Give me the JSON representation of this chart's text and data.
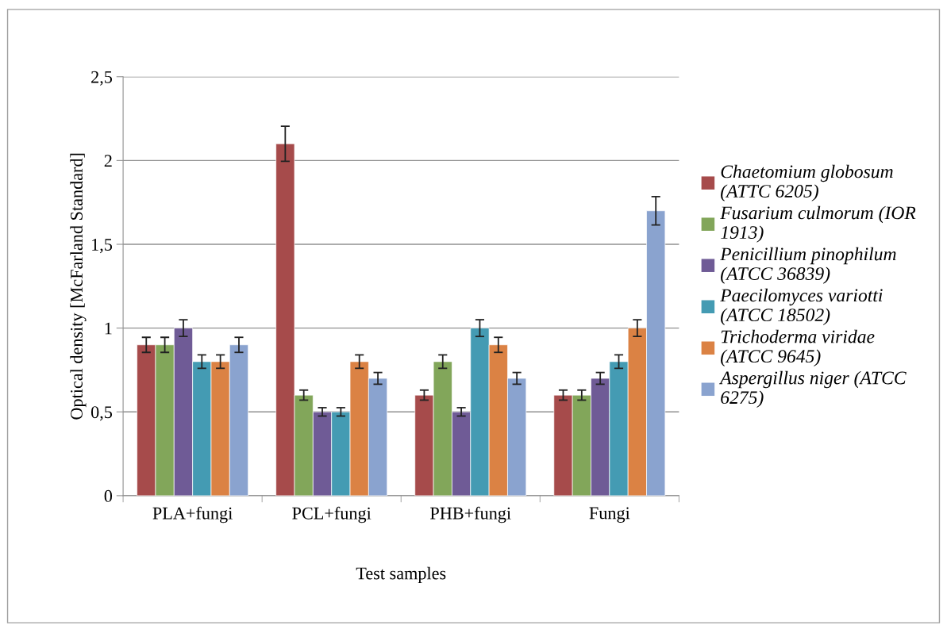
{
  "chart_data": {
    "type": "bar",
    "xlabel": "Test samples",
    "ylabel": "Optical density [McFarland Standard]",
    "categories": [
      "PLA+fungi",
      "PCL+fungi",
      "PHB+fungi",
      "Fungi"
    ],
    "series": [
      {
        "name": "Chaetomium globosum (ATTC 6205)",
        "color": "#a64b4b",
        "values": [
          0.9,
          2.1,
          0.6,
          0.6
        ],
        "errors": [
          0.045,
          0.105,
          0.03,
          0.03
        ]
      },
      {
        "name": "Fusarium culmorum (IOR 1913)",
        "color": "#82a65a",
        "values": [
          0.9,
          0.6,
          0.8,
          0.6
        ],
        "errors": [
          0.045,
          0.03,
          0.04,
          0.03
        ]
      },
      {
        "name": "Penicillium pinophilum (ATCC 36839)",
        "color": "#6f5b96",
        "values": [
          1.0,
          0.5,
          0.5,
          0.7
        ],
        "errors": [
          0.05,
          0.025,
          0.025,
          0.035
        ]
      },
      {
        "name": "Paecilomyces variotti (ATCC 18502)",
        "color": "#449bb3",
        "values": [
          0.8,
          0.5,
          1.0,
          0.8
        ],
        "errors": [
          0.04,
          0.025,
          0.05,
          0.04
        ]
      },
      {
        "name": "Trichoderma viridae (ATCC 9645)",
        "color": "#db8244",
        "values": [
          0.8,
          0.8,
          0.9,
          1.0
        ],
        "errors": [
          0.04,
          0.04,
          0.045,
          0.05
        ]
      },
      {
        "name": "Aspergillus niger (ATCC 6275)",
        "color": "#8aa3cf",
        "values": [
          0.9,
          0.7,
          0.7,
          1.7
        ],
        "errors": [
          0.045,
          0.035,
          0.035,
          0.085
        ]
      }
    ],
    "ylim": [
      0,
      2.5
    ],
    "yticks": [
      {
        "value": 0,
        "label": "0"
      },
      {
        "value": 0.5,
        "label": "0,5"
      },
      {
        "value": 1,
        "label": "1"
      },
      {
        "value": 1.5,
        "label": "1,5"
      },
      {
        "value": 2,
        "label": "2"
      },
      {
        "value": 2.5,
        "label": "2,5"
      }
    ],
    "grid": "y",
    "legend": "right"
  }
}
